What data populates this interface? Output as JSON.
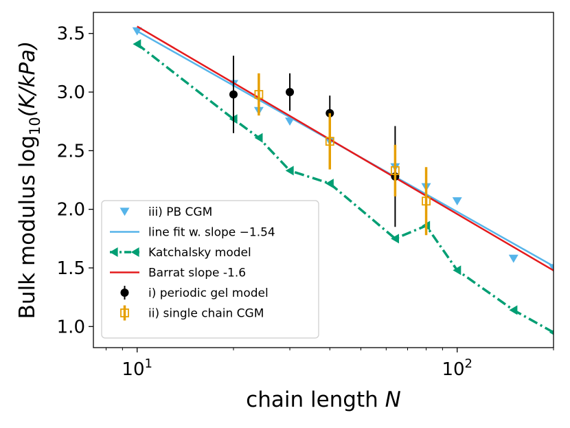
{
  "chart_data": {
    "type": "line",
    "xscale": "log",
    "xlim": [
      7.3,
      200
    ],
    "ylim": [
      0.82,
      3.68
    ],
    "xlabel_text": "chain length ",
    "xlabel_var": "N",
    "ylabel_text": "Bulk modulus log",
    "ylabel_sub": "10",
    "ylabel_tail": "(K/kPa)",
    "yticks": [
      1.0,
      1.5,
      2.0,
      2.5,
      3.0,
      3.5
    ],
    "ytick_labels": [
      "1.0",
      "1.5",
      "2.0",
      "2.5",
      "3.0",
      "3.5"
    ],
    "xticks": [
      {
        "value": 10,
        "base": "10",
        "exp": "1"
      },
      {
        "value": 100,
        "base": "10",
        "exp": "2"
      }
    ],
    "series": [
      {
        "key": "pb_cgm",
        "name": "iii) PB CGM",
        "color": "#56b4e9",
        "marker": "triangle-down",
        "x": [
          10,
          20,
          24,
          30,
          40,
          64,
          80,
          100,
          150,
          200
        ],
        "y": [
          3.52,
          3.07,
          2.84,
          2.75,
          2.58,
          2.36,
          2.19,
          2.07,
          1.58,
          1.5
        ]
      },
      {
        "key": "line_fit",
        "name": "line fit w. slope −1.54",
        "color": "#56b4e9",
        "x": [
          10,
          200
        ],
        "y": [
          3.52,
          1.515
        ]
      },
      {
        "key": "katchalsky",
        "name": "Katchalsky model",
        "color": "#009e73",
        "marker": "triangle-left",
        "dash": "dashdot",
        "x": [
          10,
          20,
          24,
          30,
          40,
          64,
          80,
          100,
          150,
          200
        ],
        "y": [
          3.41,
          2.77,
          2.61,
          2.33,
          2.22,
          1.75,
          1.86,
          1.48,
          1.14,
          0.95
        ]
      },
      {
        "key": "barrat",
        "name": "Barrat slope -1.6",
        "color": "#e41a1c",
        "x": [
          10,
          200
        ],
        "y": [
          3.56,
          1.478
        ]
      },
      {
        "key": "periodic_gel",
        "name": "i) periodic gel model",
        "color": "#000000",
        "marker": "circle",
        "x": [
          20,
          30,
          40,
          64
        ],
        "y": [
          2.98,
          3.0,
          2.82,
          2.28
        ],
        "err": [
          0.33,
          0.16,
          0.15,
          0.43
        ]
      },
      {
        "key": "single_chain",
        "name": "ii) single chain CGM",
        "color": "#e69f00",
        "marker": "square-open",
        "x": [
          24,
          40,
          64,
          80
        ],
        "y": [
          2.98,
          2.58,
          2.33,
          2.07
        ],
        "err": [
          0.18,
          0.24,
          0.22,
          0.29
        ]
      }
    ],
    "legend_order": [
      "pb_cgm",
      "line_fit",
      "katchalsky",
      "barrat",
      "periodic_gel",
      "single_chain"
    ],
    "legend_position": "lower-left"
  }
}
